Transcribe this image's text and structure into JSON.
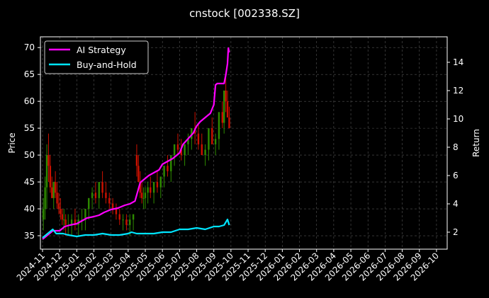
{
  "chart_data": {
    "type": "line",
    "title": "cnstock [002338.SZ]",
    "xlabel": "",
    "ylabel": "Price",
    "y2label": "Return",
    "x_tick_labels": [
      "2024-11",
      "2024-12",
      "2025-01",
      "2025-02",
      "2025-03",
      "2025-04",
      "2025-05",
      "2025-06",
      "2025-07",
      "2025-08",
      "2025-09",
      "2025-10",
      "2025-11",
      "2025-12",
      "2026-01",
      "2026-02",
      "2026-03",
      "2026-04",
      "2026-05",
      "2026-06",
      "2026-07",
      "2026-08",
      "2026-09",
      "2026-10"
    ],
    "ylim": [
      32.5,
      72.0
    ],
    "y_ticks": [
      35,
      40,
      45,
      50,
      55,
      60,
      65,
      70
    ],
    "y2lim": [
      0.8,
      15.8
    ],
    "y2_ticks": [
      2,
      4,
      6,
      8,
      10,
      12,
      14
    ],
    "grid": true,
    "legend_position": "top-left",
    "colors": {
      "background": "#000000",
      "ai": "#ff00ff",
      "bh": "#00e5ff",
      "up": "#2e8b00",
      "down": "#cc1100",
      "grid": "#555555"
    },
    "series": [
      {
        "name": "AI Strategy",
        "axis": "right",
        "x": [
          0,
          0.3,
          0.6,
          1.0,
          1.3,
          1.6,
          2.0,
          2.3,
          2.6,
          3.0,
          3.3,
          3.6,
          4.0,
          4.4,
          4.8,
          5.1,
          5.4,
          5.7,
          6.0,
          6.2,
          6.5,
          6.8,
          7.0,
          7.3,
          7.6,
          8.0,
          8.2,
          8.5,
          8.8,
          9.0,
          9.2,
          9.4,
          9.6,
          9.8,
          10.0,
          10.1,
          10.2,
          10.3,
          10.4,
          10.5,
          10.6,
          10.7,
          10.8,
          10.85,
          10.9
        ],
        "values": [
          1.5,
          1.8,
          2.1,
          2.1,
          2.4,
          2.5,
          2.6,
          2.8,
          3.0,
          3.1,
          3.2,
          3.4,
          3.6,
          3.7,
          3.9,
          4.0,
          4.2,
          5.5,
          5.8,
          6.0,
          6.2,
          6.4,
          6.8,
          7.0,
          7.2,
          7.6,
          8.2,
          8.6,
          9.0,
          9.5,
          9.8,
          10.0,
          10.2,
          10.4,
          11.0,
          12.4,
          12.5,
          12.5,
          12.5,
          12.5,
          12.5,
          13.1,
          13.9,
          15.0,
          14.7
        ]
      },
      {
        "name": "Buy-and-Hold",
        "axis": "right",
        "x": [
          0,
          0.2,
          0.4,
          0.6,
          0.8,
          1.0,
          1.2,
          1.5,
          2.0,
          2.5,
          3.0,
          3.5,
          4.0,
          4.5,
          5.0,
          5.2,
          5.5,
          6.0,
          6.5,
          7.0,
          7.5,
          8.0,
          8.5,
          9.0,
          9.5,
          10.0,
          10.3,
          10.6,
          10.8,
          10.9
        ],
        "values": [
          1.6,
          1.8,
          2.0,
          2.2,
          1.9,
          1.9,
          1.9,
          1.8,
          1.7,
          1.8,
          1.8,
          1.9,
          1.8,
          1.8,
          1.9,
          2.0,
          1.9,
          1.9,
          1.9,
          2.0,
          2.0,
          2.2,
          2.2,
          2.3,
          2.2,
          2.4,
          2.4,
          2.5,
          2.9,
          2.5
        ]
      }
    ],
    "ohlc": {
      "axis": "left",
      "x": [
        0.05,
        0.15,
        0.25,
        0.35,
        0.45,
        0.55,
        0.65,
        0.75,
        0.85,
        0.95,
        1.05,
        1.15,
        1.25,
        1.35,
        1.5,
        1.7,
        1.9,
        2.1,
        2.3,
        2.5,
        2.7,
        2.9,
        3.1,
        3.3,
        3.5,
        3.7,
        3.9,
        4.1,
        4.3,
        4.5,
        4.7,
        4.9,
        5.1,
        5.3,
        5.5,
        5.6,
        5.7,
        5.8,
        5.9,
        6.0,
        6.15,
        6.3,
        6.5,
        6.7,
        6.9,
        7.1,
        7.3,
        7.5,
        7.7,
        7.9,
        8.1,
        8.3,
        8.5,
        8.7,
        8.9,
        9.1,
        9.3,
        9.5,
        9.7,
        9.9,
        10.1,
        10.3,
        10.5,
        10.6,
        10.7,
        10.8,
        10.9
      ],
      "open": [
        38,
        40,
        44,
        50,
        48,
        44,
        42,
        45,
        43,
        41,
        40,
        39,
        38,
        38,
        37,
        37,
        38,
        37,
        38,
        38,
        40,
        42,
        43,
        42,
        45,
        43,
        42,
        41,
        40,
        39,
        38,
        38,
        37,
        38,
        50,
        48,
        45,
        43,
        42,
        42,
        43,
        44,
        43,
        45,
        44,
        46,
        48,
        47,
        50,
        52,
        51,
        50,
        52,
        53,
        55,
        54,
        52,
        50,
        51,
        55,
        52,
        53,
        58,
        56,
        62,
        60,
        57
      ],
      "high": [
        42,
        46,
        52,
        54,
        50,
        46,
        44,
        47,
        45,
        43,
        42,
        40,
        40,
        39,
        39,
        39,
        40,
        39,
        40,
        40,
        42,
        44,
        45,
        44,
        47,
        45,
        43,
        42,
        41,
        40,
        39,
        39,
        39,
        39,
        52,
        50,
        47,
        45,
        44,
        44,
        45,
        46,
        45,
        47,
        46,
        48,
        50,
        49,
        52,
        54,
        53,
        52,
        54,
        55,
        58,
        56,
        54,
        52,
        53,
        57,
        54,
        55,
        60,
        59,
        65,
        62,
        59
      ],
      "low": [
        36,
        38,
        40,
        45,
        43,
        42,
        40,
        42,
        40,
        39,
        38,
        37,
        36,
        35,
        35,
        35,
        36,
        35,
        36,
        36,
        38,
        40,
        41,
        40,
        42,
        41,
        40,
        39,
        38,
        37,
        36,
        36,
        35,
        36,
        46,
        45,
        42,
        41,
        40,
        40,
        41,
        42,
        41,
        43,
        42,
        44,
        46,
        45,
        48,
        50,
        49,
        48,
        50,
        51,
        52,
        51,
        50,
        48,
        49,
        52,
        50,
        51,
        55,
        54,
        58,
        57,
        55
      ],
      "close": [
        40,
        44,
        50,
        48,
        44,
        42,
        45,
        43,
        41,
        40,
        39,
        38,
        38,
        37,
        37,
        38,
        37,
        38,
        38,
        40,
        42,
        43,
        42,
        45,
        43,
        42,
        41,
        40,
        39,
        38,
        38,
        37,
        38,
        39,
        48,
        45,
        43,
        42,
        42,
        43,
        44,
        43,
        45,
        44,
        46,
        48,
        47,
        50,
        52,
        51,
        50,
        52,
        53,
        55,
        54,
        52,
        50,
        51,
        55,
        52,
        53,
        58,
        56,
        62,
        60,
        57,
        55
      ]
    }
  }
}
